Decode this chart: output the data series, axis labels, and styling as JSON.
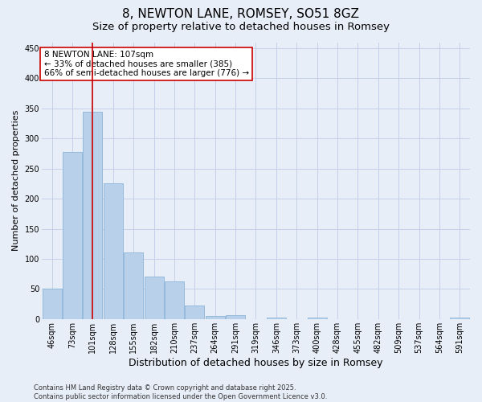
{
  "title": "8, NEWTON LANE, ROMSEY, SO51 8GZ",
  "subtitle": "Size of property relative to detached houses in Romsey",
  "xlabel": "Distribution of detached houses by size in Romsey",
  "ylabel": "Number of detached properties",
  "categories": [
    "46sqm",
    "73sqm",
    "101sqm",
    "128sqm",
    "155sqm",
    "182sqm",
    "210sqm",
    "237sqm",
    "264sqm",
    "291sqm",
    "319sqm",
    "346sqm",
    "373sqm",
    "400sqm",
    "428sqm",
    "455sqm",
    "482sqm",
    "509sqm",
    "537sqm",
    "564sqm",
    "591sqm"
  ],
  "values": [
    50,
    278,
    345,
    225,
    110,
    70,
    63,
    22,
    5,
    7,
    0,
    3,
    0,
    3,
    0,
    0,
    0,
    0,
    0,
    0,
    3
  ],
  "bar_color": "#b8d0ea",
  "bar_edge_color": "#8ab4d8",
  "vline_x_index": 2,
  "vline_color": "#cc0000",
  "annotation_line1": "8 NEWTON LANE: 107sqm",
  "annotation_line2": "← 33% of detached houses are smaller (385)",
  "annotation_line3": "66% of semi-detached houses are larger (776) →",
  "annotation_box_color": "#ffffff",
  "annotation_box_edge_color": "#cc0000",
  "ylim": [
    0,
    460
  ],
  "yticks": [
    0,
    50,
    100,
    150,
    200,
    250,
    300,
    350,
    400,
    450
  ],
  "background_color": "#e8eef8",
  "grid_color": "#c5d0e8",
  "footer": "Contains HM Land Registry data © Crown copyright and database right 2025.\nContains public sector information licensed under the Open Government Licence v3.0.",
  "title_fontsize": 11,
  "subtitle_fontsize": 9.5,
  "xlabel_fontsize": 9,
  "ylabel_fontsize": 8,
  "tick_fontsize": 7,
  "annotation_fontsize": 7.5,
  "footer_fontsize": 6
}
